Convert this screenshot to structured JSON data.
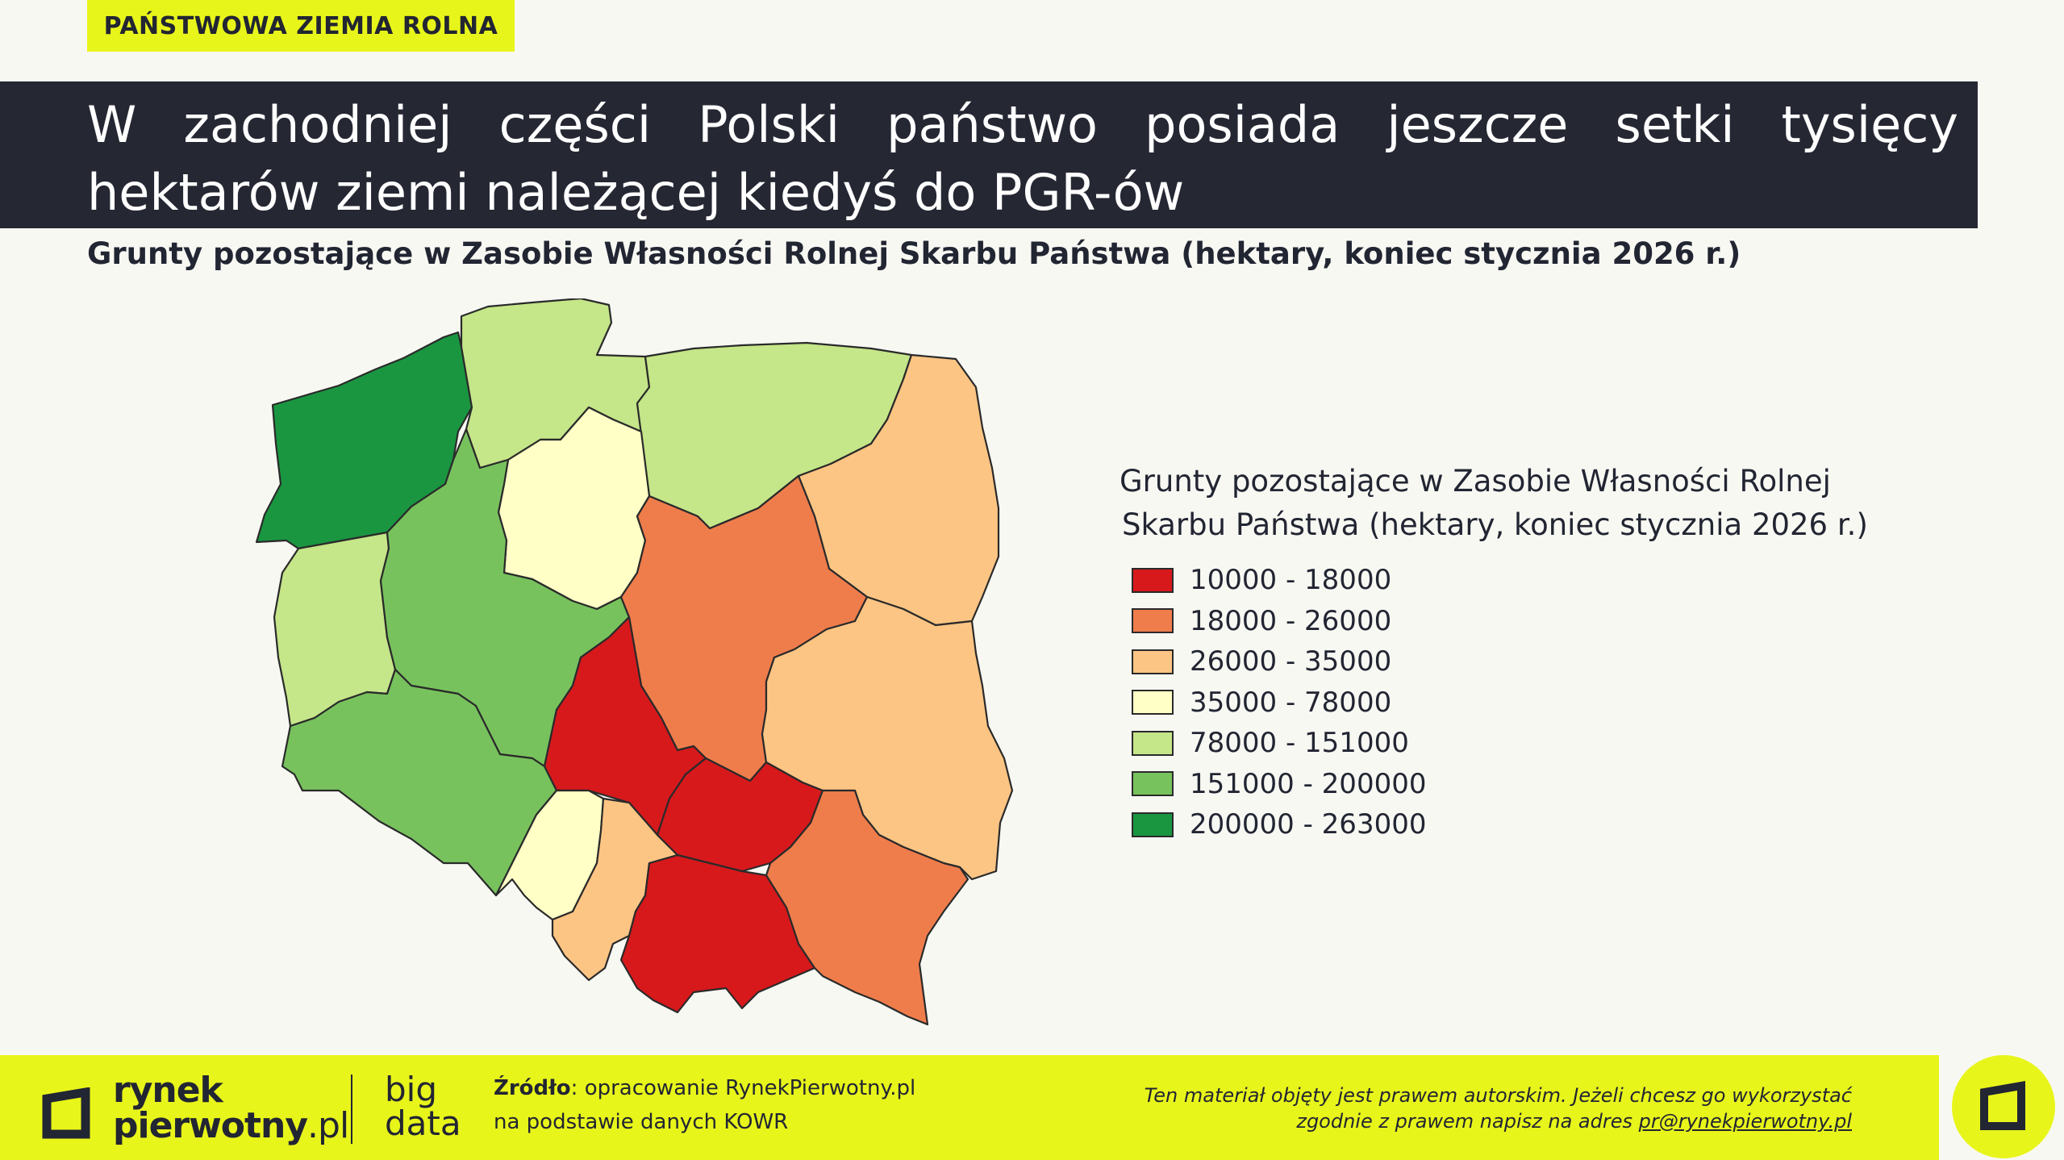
{
  "tag": "PAŃSTWOWA ZIEMIA ROLNA",
  "title": "W zachodniej części Polski państwo posiada jeszcze setki tysięcy hektarów ziemi należącej kiedyś do PGR-ów",
  "subtitle": "Grunty pozostające w Zasobie Własności Rolnej Skarbu Państwa (hektary, koniec stycznia 2026 r.)",
  "legend": {
    "title_line1": "Grunty pozostające w Zasobie Własności Rolnej",
    "title_line2": "Skarbu Państwa (hektary, koniec stycznia 2026 r.)",
    "classes": [
      {
        "range": "10000 - 18000",
        "color": "#d7191c"
      },
      {
        "range": "18000 - 26000",
        "color": "#ef7d4c"
      },
      {
        "range": "26000 - 35000",
        "color": "#fdc584"
      },
      {
        "range": "35000 - 78000",
        "color": "#ffffc6"
      },
      {
        "range": "78000 - 151000",
        "color": "#c5e689"
      },
      {
        "range": "151000 - 200000",
        "color": "#78c25e"
      },
      {
        "range": "200000 - 263000",
        "color": "#1a9641"
      }
    ]
  },
  "map_regions": [
    {
      "name": "zachodniopomorskie",
      "class": 6
    },
    {
      "name": "pomorskie",
      "class": 4
    },
    {
      "name": "warmińsko-mazurskie",
      "class": 4
    },
    {
      "name": "podlaskie",
      "class": 2
    },
    {
      "name": "kujawsko-pomorskie",
      "class": 3
    },
    {
      "name": "lubuskie",
      "class": 4
    },
    {
      "name": "wielkopolskie",
      "class": 5
    },
    {
      "name": "mazowieckie",
      "class": 1
    },
    {
      "name": "łódzkie",
      "class": 0
    },
    {
      "name": "lubelskie",
      "class": 2
    },
    {
      "name": "dolnośląskie",
      "class": 5
    },
    {
      "name": "opolskie",
      "class": 3
    },
    {
      "name": "śląskie",
      "class": 2
    },
    {
      "name": "świętokrzyskie",
      "class": 0
    },
    {
      "name": "małopolskie",
      "class": 0
    },
    {
      "name": "podkarpackie",
      "class": 1
    }
  ],
  "footer": {
    "logo_line1": "rynek",
    "logo_line2": "pierwotny",
    "logo_suffix": ".pl",
    "bigdata_line1": "big",
    "bigdata_line2": "data",
    "source_label": "Źródło",
    "source_line1": ": opracowanie RynekPierwotny.pl",
    "source_line2": "na podstawie danych KOWR",
    "copyright_line1": "Ten materiał objęty jest prawem autorskim. Jeżeli chcesz go wykorzystać",
    "copyright_line2_prefix": "zgodnie z prawem napisz na adres ",
    "copyright_email": "pr@rynekpierwotny.pl"
  },
  "colors": {
    "accent": "#e8f51a",
    "title_bg": "#252733",
    "background": "#f8f8f3"
  }
}
